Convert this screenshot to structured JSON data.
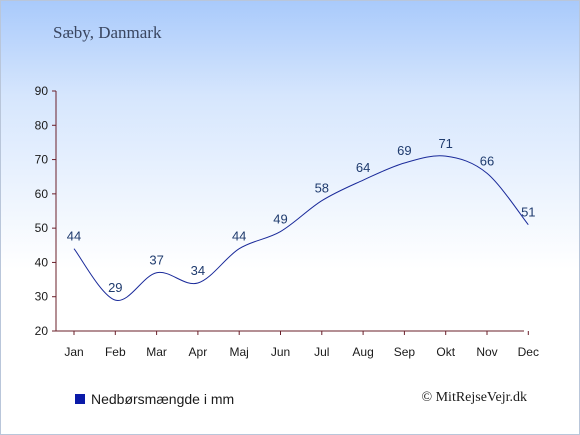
{
  "header": {
    "title": "Sæby, Danmark"
  },
  "footer": {
    "legend_label": "Nedbørsmængde i mm",
    "credit": "© MitRejseVejr.dk"
  },
  "colors": {
    "line": "#1a2a9a",
    "legend_swatch": "#0a1aa8"
  },
  "chart_data": {
    "type": "line",
    "title": "Sæby, Danmark",
    "categories": [
      "Jan",
      "Feb",
      "Mar",
      "Apr",
      "Maj",
      "Jun",
      "Jul",
      "Aug",
      "Sep",
      "Okt",
      "Nov",
      "Dec"
    ],
    "series": [
      {
        "name": "Nedbørsmængde i mm",
        "values": [
          44,
          29,
          37,
          34,
          44,
          49,
          58,
          64,
          69,
          71,
          66,
          51
        ]
      }
    ],
    "yticks": [
      20,
      30,
      40,
      50,
      60,
      70,
      80,
      90
    ],
    "ylim": [
      20,
      90
    ],
    "grid": false,
    "legend": "bottom-left"
  }
}
